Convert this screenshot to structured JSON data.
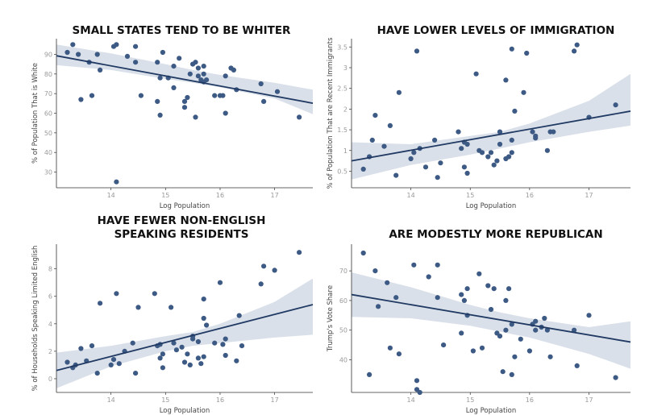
{
  "chart_data": [
    {
      "type": "scatter",
      "title": "SMALL STATES TEND TO BE WHITER",
      "xlabel": "Log Population",
      "ylabel": "% of Population That is White",
      "xlim": [
        13.0,
        17.7
      ],
      "ylim": [
        22,
        98
      ],
      "xticks": [
        14,
        15,
        16,
        17
      ],
      "yticks": [
        30,
        40,
        50,
        60,
        70,
        80,
        90
      ],
      "fit": {
        "x": [
          13.0,
          17.7
        ],
        "y": [
          89.3,
          65.1
        ]
      },
      "band": {
        "x": [
          13.0,
          14.0,
          15.0,
          15.5,
          16.0,
          17.0,
          17.7
        ],
        "lower": [
          84.5,
          82.0,
          77.5,
          75.5,
          73.2,
          67.5,
          59.5
        ],
        "upper": [
          95.0,
          90.5,
          85.0,
          82.0,
          79.5,
          75.5,
          72.0
        ]
      },
      "points": [
        [
          13.2,
          91
        ],
        [
          13.3,
          95
        ],
        [
          13.4,
          90
        ],
        [
          13.45,
          67
        ],
        [
          13.6,
          86
        ],
        [
          13.65,
          69
        ],
        [
          13.75,
          90
        ],
        [
          13.8,
          82
        ],
        [
          14.05,
          94
        ],
        [
          14.1,
          95
        ],
        [
          14.1,
          25
        ],
        [
          14.3,
          89
        ],
        [
          14.45,
          94
        ],
        [
          14.45,
          86
        ],
        [
          14.55,
          69
        ],
        [
          14.85,
          66
        ],
        [
          14.85,
          86
        ],
        [
          14.9,
          59
        ],
        [
          14.9,
          78
        ],
        [
          14.95,
          91
        ],
        [
          15.05,
          78
        ],
        [
          15.15,
          84
        ],
        [
          15.15,
          73
        ],
        [
          15.25,
          88
        ],
        [
          15.35,
          63
        ],
        [
          15.35,
          66
        ],
        [
          15.4,
          68
        ],
        [
          15.45,
          80
        ],
        [
          15.5,
          85
        ],
        [
          15.55,
          86
        ],
        [
          15.55,
          58
        ],
        [
          15.6,
          83
        ],
        [
          15.6,
          79
        ],
        [
          15.65,
          77
        ],
        [
          15.7,
          84
        ],
        [
          15.7,
          80
        ],
        [
          15.7,
          76
        ],
        [
          15.75,
          77
        ],
        [
          15.9,
          69
        ],
        [
          16.0,
          69
        ],
        [
          16.05,
          69
        ],
        [
          16.1,
          60
        ],
        [
          16.1,
          79
        ],
        [
          16.2,
          83
        ],
        [
          16.25,
          82
        ],
        [
          16.3,
          72
        ],
        [
          16.75,
          75
        ],
        [
          16.8,
          66
        ],
        [
          17.05,
          71
        ],
        [
          17.45,
          58
        ]
      ]
    },
    {
      "type": "scatter",
      "title": "HAVE LOWER LEVELS OF IMMIGRATION",
      "xlabel": "Log Population",
      "ylabel": "% of Population That are Recent Immigrants",
      "xlim": [
        13.0,
        17.7
      ],
      "ylim": [
        0.1,
        3.7
      ],
      "xticks": [
        14,
        15,
        16,
        17
      ],
      "yticks": [
        0.5,
        1.0,
        1.5,
        2.0,
        2.5,
        3.0,
        3.5
      ],
      "fit": {
        "x": [
          13.0,
          17.7
        ],
        "y": [
          0.75,
          1.95
        ]
      },
      "band": {
        "x": [
          13.0,
          14.0,
          15.0,
          15.5,
          16.0,
          17.0,
          17.7
        ],
        "lower": [
          0.3,
          0.65,
          0.9,
          1.05,
          1.2,
          1.45,
          1.6
        ],
        "upper": [
          1.2,
          1.15,
          1.35,
          1.45,
          1.65,
          2.2,
          2.85
        ]
      },
      "points": [
        [
          13.2,
          0.55
        ],
        [
          13.3,
          0.85
        ],
        [
          13.35,
          1.25
        ],
        [
          13.4,
          1.85
        ],
        [
          13.55,
          1.1
        ],
        [
          13.65,
          1.6
        ],
        [
          13.75,
          0.4
        ],
        [
          13.8,
          2.4
        ],
        [
          14.0,
          0.8
        ],
        [
          14.05,
          0.95
        ],
        [
          14.1,
          3.4
        ],
        [
          14.15,
          1.05
        ],
        [
          14.25,
          0.6
        ],
        [
          14.4,
          1.25
        ],
        [
          14.45,
          0.35
        ],
        [
          14.5,
          0.7
        ],
        [
          14.8,
          1.45
        ],
        [
          14.85,
          1.05
        ],
        [
          14.9,
          1.2
        ],
        [
          14.9,
          0.6
        ],
        [
          14.95,
          0.45
        ],
        [
          14.95,
          1.15
        ],
        [
          15.1,
          2.85
        ],
        [
          15.15,
          1.0
        ],
        [
          15.2,
          0.95
        ],
        [
          15.3,
          0.85
        ],
        [
          15.35,
          0.95
        ],
        [
          15.4,
          0.65
        ],
        [
          15.45,
          0.75
        ],
        [
          15.5,
          1.15
        ],
        [
          15.5,
          1.45
        ],
        [
          15.6,
          2.7
        ],
        [
          15.6,
          0.8
        ],
        [
          15.65,
          0.85
        ],
        [
          15.7,
          0.95
        ],
        [
          15.7,
          1.25
        ],
        [
          15.7,
          3.45
        ],
        [
          15.75,
          1.95
        ],
        [
          15.9,
          2.4
        ],
        [
          15.95,
          3.35
        ],
        [
          16.05,
          1.45
        ],
        [
          16.1,
          1.3
        ],
        [
          16.1,
          1.35
        ],
        [
          16.3,
          1.0
        ],
        [
          16.35,
          1.45
        ],
        [
          16.4,
          1.45
        ],
        [
          16.75,
          3.4
        ],
        [
          16.8,
          3.55
        ],
        [
          17.0,
          1.8
        ],
        [
          17.45,
          2.1
        ]
      ]
    },
    {
      "type": "scatter",
      "title": "HAVE FEWER NON-ENGLISH SPEAKING RESIDENTS",
      "title_lines": [
        "HAVE FEWER NON-ENGLISH",
        "SPEAKING RESIDENTS"
      ],
      "xlabel": "Log Population",
      "ylabel": "% of Households Speaking Limited English",
      "xlim": [
        13.0,
        17.7
      ],
      "ylim": [
        -1.0,
        9.8
      ],
      "xticks": [
        14,
        15,
        16,
        17
      ],
      "yticks": [
        0,
        2,
        4,
        6,
        8
      ],
      "fit": {
        "x": [
          13.0,
          17.7
        ],
        "y": [
          0.6,
          5.4
        ]
      },
      "band": {
        "x": [
          13.0,
          14.0,
          15.0,
          15.5,
          16.0,
          17.0,
          17.7
        ],
        "lower": [
          -0.7,
          0.9,
          2.0,
          2.4,
          2.6,
          3.0,
          3.2
        ],
        "upper": [
          1.9,
          2.4,
          3.1,
          3.4,
          4.0,
          5.6,
          7.3
        ]
      },
      "points": [
        [
          13.2,
          1.2
        ],
        [
          13.3,
          0.8
        ],
        [
          13.35,
          1.0
        ],
        [
          13.45,
          2.2
        ],
        [
          13.55,
          1.3
        ],
        [
          13.65,
          2.4
        ],
        [
          13.75,
          0.4
        ],
        [
          13.8,
          5.5
        ],
        [
          14.0,
          1.0
        ],
        [
          14.05,
          1.4
        ],
        [
          14.1,
          6.2
        ],
        [
          14.15,
          1.1
        ],
        [
          14.25,
          2.0
        ],
        [
          14.4,
          2.6
        ],
        [
          14.45,
          0.4
        ],
        [
          14.5,
          5.2
        ],
        [
          14.8,
          6.2
        ],
        [
          14.85,
          2.4
        ],
        [
          14.9,
          2.5
        ],
        [
          14.9,
          1.5
        ],
        [
          14.95,
          1.8
        ],
        [
          14.95,
          0.8
        ],
        [
          15.1,
          5.2
        ],
        [
          15.15,
          2.6
        ],
        [
          15.2,
          2.1
        ],
        [
          15.3,
          2.3
        ],
        [
          15.35,
          1.2
        ],
        [
          15.4,
          1.8
        ],
        [
          15.45,
          1.0
        ],
        [
          15.5,
          2.9
        ],
        [
          15.5,
          3.1
        ],
        [
          15.6,
          1.5
        ],
        [
          15.6,
          2.7
        ],
        [
          15.65,
          1.1
        ],
        [
          15.7,
          1.6
        ],
        [
          15.7,
          4.4
        ],
        [
          15.7,
          5.8
        ],
        [
          15.75,
          3.9
        ],
        [
          15.9,
          2.6
        ],
        [
          16.0,
          7.0
        ],
        [
          16.05,
          2.5
        ],
        [
          16.1,
          1.7
        ],
        [
          16.1,
          2.9
        ],
        [
          16.3,
          1.3
        ],
        [
          16.35,
          4.6
        ],
        [
          16.4,
          2.4
        ],
        [
          16.75,
          6.9
        ],
        [
          16.8,
          8.2
        ],
        [
          17.0,
          7.9
        ],
        [
          17.45,
          9.2
        ]
      ]
    },
    {
      "type": "scatter",
      "title": "ARE MODESTLY MORE REPUBLICAN",
      "xlabel": "Log Population",
      "ylabel": "Trump's Vote Share",
      "xlim": [
        13.0,
        17.7
      ],
      "ylim": [
        29,
        79
      ],
      "xticks": [
        14,
        15,
        16,
        17
      ],
      "yticks": [
        40,
        50,
        60,
        70
      ],
      "fit": {
        "x": [
          13.0,
          17.7
        ],
        "y": [
          62.0,
          46.0
        ]
      },
      "band": {
        "x": [
          13.0,
          14.0,
          15.0,
          15.5,
          16.0,
          17.0,
          17.7
        ],
        "lower": [
          54.5,
          54.0,
          51.5,
          49.5,
          47.5,
          42.0,
          37.0
        ],
        "upper": [
          69.5,
          64.5,
          58.5,
          56.0,
          54.0,
          51.0,
          53.0
        ]
      },
      "points": [
        [
          13.2,
          76
        ],
        [
          13.3,
          35
        ],
        [
          13.4,
          70
        ],
        [
          13.45,
          58
        ],
        [
          13.6,
          66
        ],
        [
          13.65,
          44
        ],
        [
          13.75,
          61
        ],
        [
          13.8,
          42
        ],
        [
          14.05,
          72
        ],
        [
          14.1,
          30
        ],
        [
          14.1,
          33
        ],
        [
          14.15,
          29
        ],
        [
          14.3,
          68
        ],
        [
          14.45,
          72
        ],
        [
          14.45,
          61
        ],
        [
          14.55,
          45
        ],
        [
          14.85,
          49
        ],
        [
          14.85,
          62
        ],
        [
          14.9,
          60
        ],
        [
          14.95,
          64
        ],
        [
          14.95,
          55
        ],
        [
          15.05,
          43
        ],
        [
          15.15,
          69
        ],
        [
          15.2,
          44
        ],
        [
          15.3,
          65
        ],
        [
          15.35,
          57
        ],
        [
          15.4,
          64
        ],
        [
          15.45,
          49
        ],
        [
          15.5,
          48
        ],
        [
          15.55,
          36
        ],
        [
          15.6,
          60
        ],
        [
          15.6,
          50
        ],
        [
          15.65,
          64
        ],
        [
          15.7,
          52
        ],
        [
          15.7,
          35
        ],
        [
          15.75,
          41
        ],
        [
          15.85,
          47
        ],
        [
          16.0,
          43
        ],
        [
          16.05,
          52
        ],
        [
          16.1,
          53
        ],
        [
          16.1,
          50
        ],
        [
          16.2,
          51
        ],
        [
          16.25,
          54
        ],
        [
          16.35,
          41
        ],
        [
          16.3,
          50
        ],
        [
          16.75,
          50
        ],
        [
          16.8,
          38
        ],
        [
          17.0,
          55
        ],
        [
          17.45,
          34
        ]
      ]
    }
  ]
}
